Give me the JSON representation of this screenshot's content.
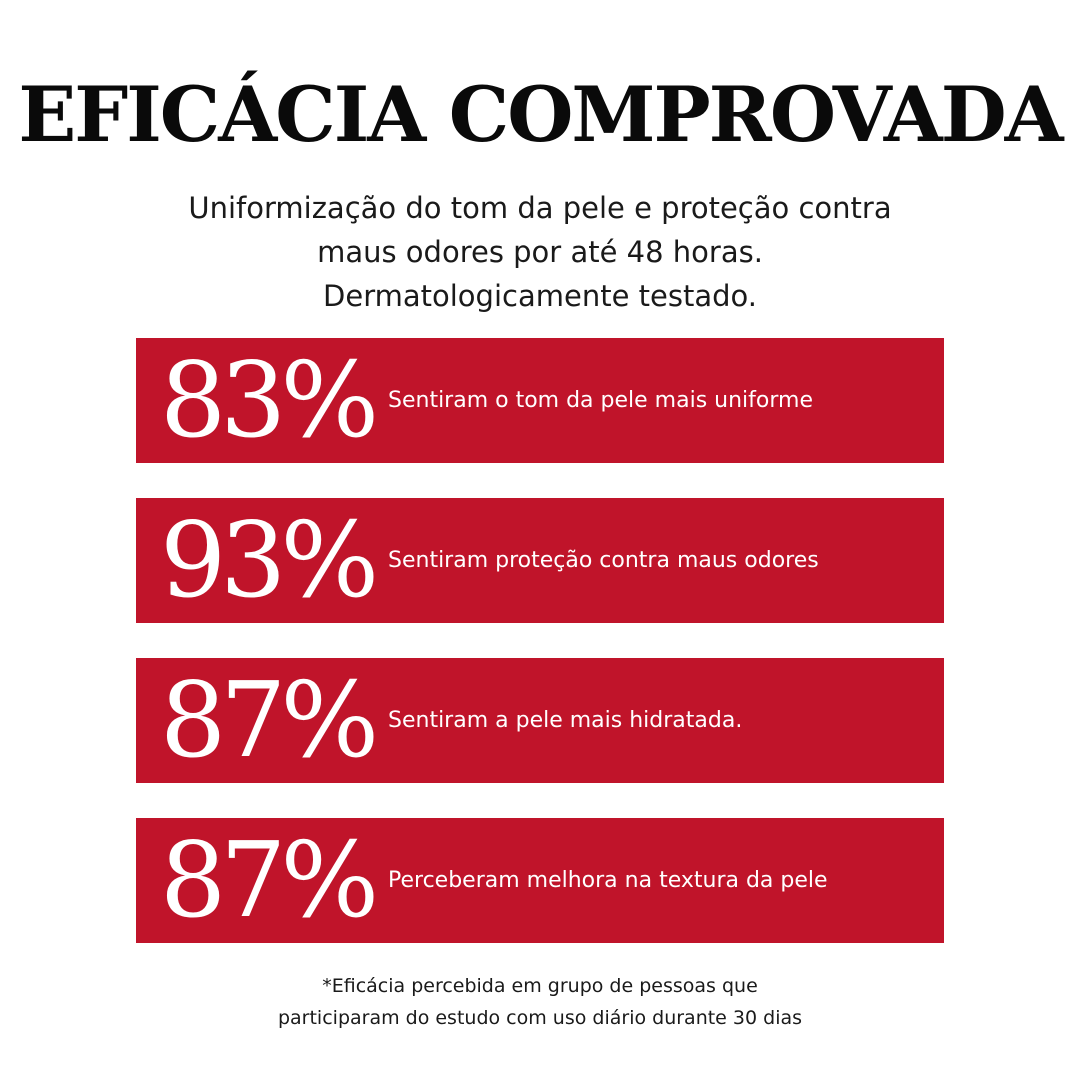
{
  "header": {
    "title": "EFICÁCIA COMPROVADA",
    "subtitle": [
      "Uniformização do tom da pele e proteção contra",
      "maus odores por até 48 horas.",
      "Dermatologicamente testado."
    ]
  },
  "stats": [
    {
      "value": "83%",
      "label": "Sentiram o tom da pele mais uniforme"
    },
    {
      "value": "93%",
      "label": "Sentiram proteção contra maus odores"
    },
    {
      "value": "87%",
      "label": "Sentiram a pele mais hidratada."
    },
    {
      "value": "87%",
      "label": "Perceberam melhora na textura da pele"
    }
  ],
  "footnote": [
    "*Eficácia percebida em grupo de pessoas que",
    "participaram do estudo com uso diário durante 30 dias"
  ]
}
